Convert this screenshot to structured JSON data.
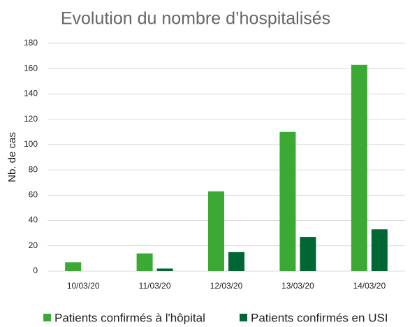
{
  "chart_data": {
    "type": "bar",
    "title": "Evolution du nombre d’hospitalisés",
    "y_label": "Nb. de cas",
    "categories": [
      "10/03/20",
      "11/03/20",
      "12/03/20",
      "13/03/20",
      "14/03/20"
    ],
    "series": [
      {
        "name": "Patients confirmés à l'hôpital",
        "color": "#3aaa35",
        "values": [
          7,
          14,
          63,
          110,
          163
        ]
      },
      {
        "name": "Patients confirmés en USI",
        "color": "#006633",
        "values": [
          0,
          2,
          15,
          27,
          33
        ]
      }
    ],
    "ylim": [
      0,
      180
    ],
    "yticks": [
      0,
      20,
      40,
      60,
      80,
      100,
      120,
      140,
      160,
      180
    ],
    "grid": true
  }
}
